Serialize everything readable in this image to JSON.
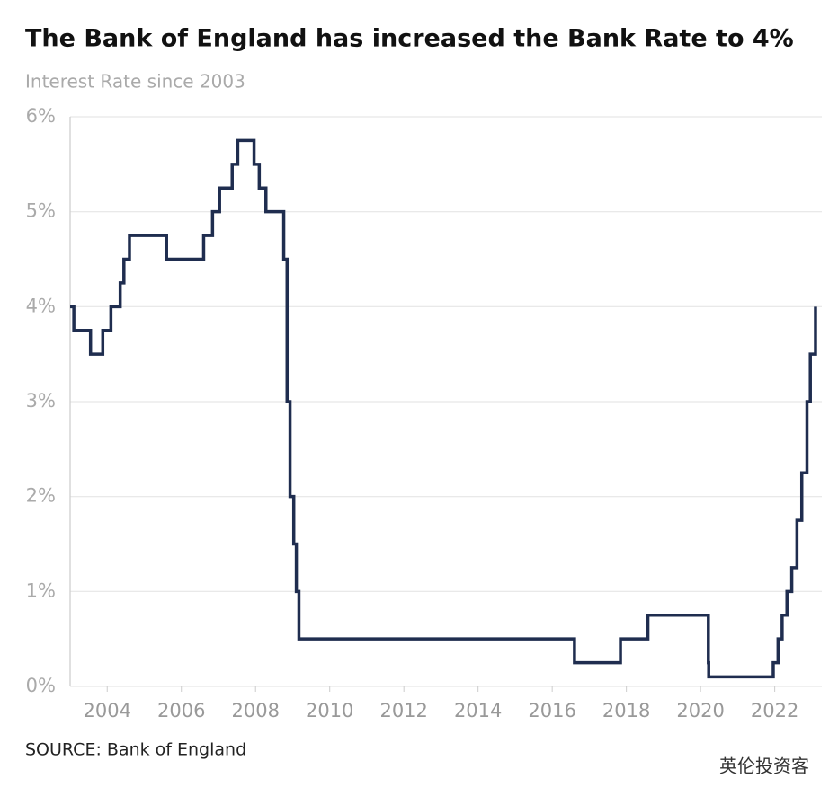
{
  "chart_data": {
    "type": "step",
    "title": "The Bank of England has increased the Bank Rate to 4%",
    "subtitle": "Interest Rate since 2003",
    "source": "SOURCE: Bank of England",
    "watermark": "英伦投资客",
    "x": [
      2003.0,
      2003.1,
      2003.55,
      2003.88,
      2004.1,
      2004.35,
      2004.45,
      2004.6,
      2005.6,
      2006.6,
      2006.84,
      2007.03,
      2007.37,
      2007.52,
      2007.96,
      2008.1,
      2008.28,
      2008.76,
      2008.85,
      2008.93,
      2009.03,
      2009.1,
      2009.17,
      2016.6,
      2017.84,
      2018.58,
      2020.21,
      2020.22,
      2021.96,
      2022.09,
      2022.2,
      2022.33,
      2022.46,
      2022.6,
      2022.73,
      2022.87,
      2022.96,
      2023.1
    ],
    "values": [
      4.0,
      3.75,
      3.5,
      3.75,
      4.0,
      4.25,
      4.5,
      4.75,
      4.5,
      4.75,
      5.0,
      5.25,
      5.5,
      5.75,
      5.5,
      5.25,
      5.0,
      4.5,
      3.0,
      2.0,
      1.5,
      1.0,
      0.5,
      0.25,
      0.5,
      0.75,
      0.25,
      0.1,
      0.25,
      0.5,
      0.75,
      1.0,
      1.25,
      1.75,
      2.25,
      3.0,
      3.5,
      4.0
    ],
    "color": "#1f2d4f",
    "xlim": [
      2003.0,
      2023.27
    ],
    "xticks": [
      2004,
      2006,
      2008,
      2010,
      2012,
      2014,
      2016,
      2018,
      2020,
      2022
    ],
    "ylim": [
      0,
      6
    ],
    "yticks": [
      {
        "value": 0,
        "label": "0%"
      },
      {
        "value": 1,
        "label": "1%"
      },
      {
        "value": 2,
        "label": "2%"
      },
      {
        "value": 3,
        "label": "3%"
      },
      {
        "value": 4,
        "label": "4%"
      },
      {
        "value": 5,
        "label": "5%"
      },
      {
        "value": 6,
        "label": "6%"
      }
    ],
    "grid": true
  }
}
